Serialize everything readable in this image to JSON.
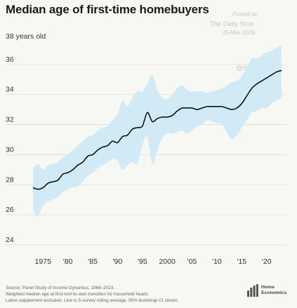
{
  "chart_data": {
    "type": "line",
    "title": "Median age of first-time homebuyers",
    "ylabel": "38 years old",
    "xlabel": "",
    "x_tick_labels": [
      {
        "year": 1975,
        "label": "1975"
      },
      {
        "year": 1980,
        "label": "'80"
      },
      {
        "year": 1985,
        "label": "'85"
      },
      {
        "year": 1990,
        "label": "'90"
      },
      {
        "year": 1995,
        "label": "'95"
      },
      {
        "year": 2000,
        "label": "2000"
      },
      {
        "year": 2005,
        "label": "'05"
      },
      {
        "year": 2010,
        "label": "'10"
      },
      {
        "year": 2015,
        "label": "'15"
      },
      {
        "year": 2020,
        "label": "'20"
      }
    ],
    "y_ticks": [
      24,
      26,
      28,
      30,
      32,
      34,
      36
    ],
    "xlim": [
      1972,
      2024
    ],
    "ylim": [
      24,
      38
    ],
    "grid": "horizontal",
    "line_color": "#111111",
    "band_color": "#cfe9f6",
    "series": [
      {
        "x": [
          1973,
          1974,
          1975,
          1976,
          1977,
          1978,
          1979,
          1980,
          1981,
          1982,
          1983,
          1984,
          1985,
          1986,
          1987,
          1988,
          1989,
          1990,
          1991,
          1992,
          1993,
          1994,
          1995,
          1996,
          1997,
          1998,
          1999,
          2000,
          2001,
          2002,
          2003,
          2004,
          2005,
          2006,
          2007,
          2008,
          2009,
          2010,
          2011,
          2012,
          2013,
          2014,
          2015,
          2016,
          2017,
          2018,
          2019,
          2020,
          2021,
          2022,
          2023
        ],
        "y": [
          27.8,
          27.7,
          27.8,
          28.1,
          28.2,
          28.3,
          28.7,
          28.8,
          29.0,
          29.3,
          29.5,
          29.9,
          30.0,
          30.3,
          30.5,
          30.6,
          30.9,
          30.8,
          31.2,
          31.3,
          31.7,
          31.8,
          31.9,
          32.8,
          32.2,
          32.4,
          32.5,
          32.5,
          32.6,
          32.9,
          33.1,
          33.1,
          33.1,
          33.0,
          33.1,
          33.2,
          33.2,
          33.2,
          33.2,
          33.1,
          33.0,
          33.1,
          33.4,
          33.9,
          34.4,
          34.7,
          34.9,
          35.1,
          35.3,
          35.5,
          35.6
        ],
        "lower": [
          26.3,
          25.9,
          26.6,
          26.9,
          27.0,
          27.2,
          27.5,
          27.7,
          27.8,
          27.9,
          28.2,
          28.6,
          28.8,
          29.1,
          29.3,
          29.5,
          29.7,
          29.6,
          29.0,
          29.3,
          29.5,
          29.4,
          30.6,
          31.2,
          29.4,
          30.3,
          31.1,
          31.4,
          31.4,
          31.5,
          31.6,
          31.4,
          31.6,
          31.9,
          32.0,
          32.3,
          32.2,
          32.1,
          32.0,
          31.5,
          31.0,
          31.3,
          31.8,
          32.3,
          32.8,
          32.9,
          33.1,
          33.1,
          33.4,
          33.6,
          33.8
        ],
        "upper": [
          29.1,
          29.4,
          29.0,
          29.3,
          29.4,
          29.5,
          29.8,
          30.0,
          30.3,
          30.6,
          30.9,
          31.2,
          31.3,
          31.6,
          31.8,
          31.9,
          32.3,
          32.7,
          33.6,
          33.2,
          33.8,
          34.2,
          34.2,
          34.7,
          35.3,
          34.3,
          33.8,
          33.7,
          34.0,
          34.4,
          34.6,
          34.3,
          34.2,
          34.2,
          34.2,
          34.1,
          34.2,
          34.3,
          34.4,
          34.6,
          34.8,
          34.9,
          35.2,
          35.8,
          36.4,
          36.4,
          36.6,
          36.8,
          36.9,
          37.1,
          37.3
        ]
      }
    ]
  },
  "watermark": {
    "posted_on": "Posted on",
    "publication": "The Daily Shot",
    "date": "25-Mar-2026",
    "handle": "@SoberLook"
  },
  "footer": {
    "line1": "Source: Panel Study of Income Dynamics, 1968–2023.",
    "line2": "Weighted median age at first rent-to-own transition for household heads.",
    "line3": "Latino supplement excluded. Line is 5-survey rolling average. 90% bootstrap CI shown."
  },
  "logo": {
    "line1": "Home",
    "line2": "Economics",
    "icon": "bar-columns-logo-icon"
  }
}
